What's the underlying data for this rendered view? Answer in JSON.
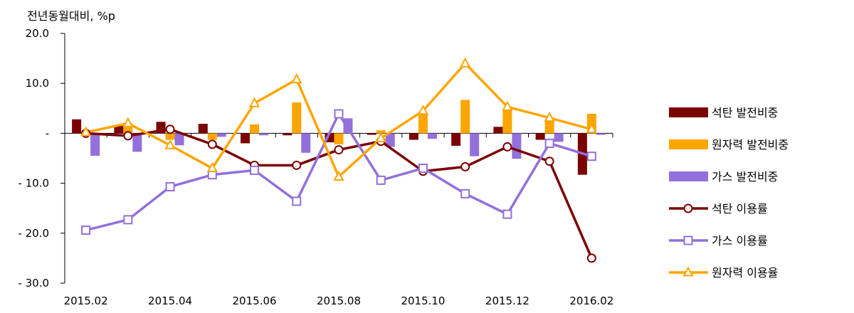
{
  "chart_data": {
    "type": "bar+line",
    "ylabel": "전년동월대비, %p",
    "ylim": [
      -30,
      20
    ],
    "y_ticks": [
      {
        "value": 20,
        "label": "20.0"
      },
      {
        "value": 10,
        "label": "10.0"
      },
      {
        "value": 0,
        "label": "-"
      },
      {
        "value": -10,
        "label": "- 10.0"
      },
      {
        "value": -20,
        "label": "- 20.0"
      },
      {
        "value": -30,
        "label": "- 30.0"
      }
    ],
    "categories": [
      "2015.02",
      "2015.03",
      "2015.04",
      "2015.05",
      "2015.06",
      "2015.07",
      "2015.08",
      "2015.09",
      "2015.10",
      "2015.11",
      "2015.12",
      "2016.01",
      "2016.02"
    ],
    "x_tick_labels": [
      "2015.02",
      "2015.04",
      "2015.06",
      "2015.08",
      "2015.10",
      "2015.12",
      "2016.02"
    ],
    "bar_series": [
      {
        "name": "석탄 발전비중",
        "color": "#7b0000",
        "values": [
          2.8,
          1.5,
          2.3,
          1.9,
          -2.0,
          -0.4,
          -1.8,
          -0.3,
          -1.3,
          -2.5,
          1.3,
          -1.3,
          -8.3
        ]
      },
      {
        "name": "원자력 발전비중",
        "color": "#ffa500",
        "values": [
          0.3,
          2.0,
          -1.3,
          -1.3,
          1.8,
          6.2,
          -2.2,
          0.6,
          4.1,
          6.7,
          4.8,
          2.8,
          3.9
        ]
      },
      {
        "name": "가스 발전비중",
        "color": "#9370db",
        "values": [
          -4.5,
          -3.7,
          -2.4,
          -0.7,
          -0.4,
          -3.9,
          3.0,
          -2.7,
          -1.1,
          -4.6,
          -5.1,
          -1.7,
          -0.3
        ]
      }
    ],
    "line_series": [
      {
        "name": "석탄 이용률",
        "color": "#7b0000",
        "marker": "circle",
        "values": [
          0.0,
          -0.5,
          0.8,
          -2.2,
          -6.4,
          -6.4,
          -3.3,
          -1.6,
          -7.6,
          -6.7,
          -2.7,
          -5.6,
          -25.0
        ]
      },
      {
        "name": "가스 이용률",
        "color": "#9370db",
        "marker": "square",
        "values": [
          -19.4,
          -17.3,
          -10.7,
          -8.3,
          -7.4,
          -13.6,
          3.9,
          -9.4,
          -7.0,
          -12.1,
          -16.2,
          -2.0,
          -4.6
        ]
      },
      {
        "name": "원자력 이용율",
        "color": "#ffa500",
        "marker": "triangle",
        "values": [
          0.2,
          2.0,
          -2.4,
          -7.0,
          6.0,
          10.8,
          -8.7,
          -1.0,
          4.5,
          14.0,
          5.3,
          3.1,
          0.8
        ]
      }
    ],
    "legend_position": "right",
    "grid": false
  }
}
